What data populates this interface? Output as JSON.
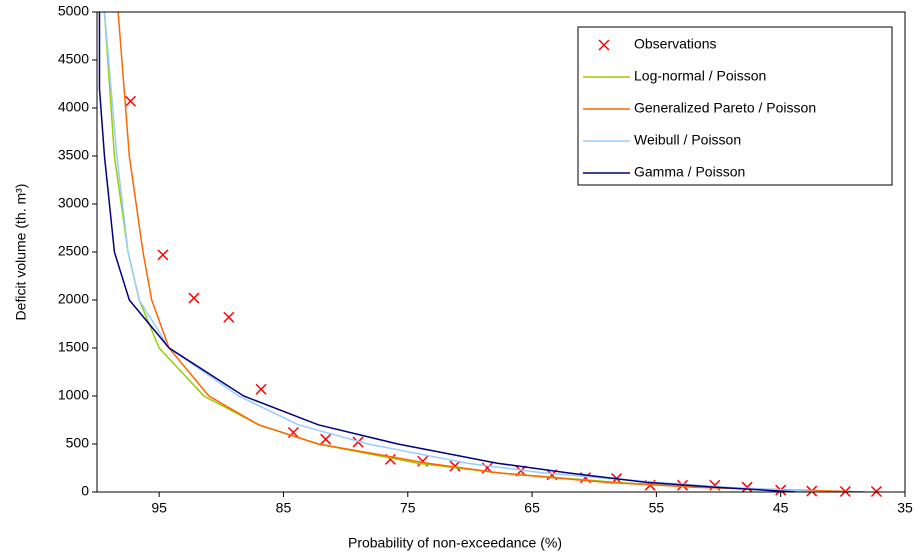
{
  "chart_data": {
    "type": "line",
    "xlabel": "Probability of non-exceedance (%)",
    "ylabel": "Deficit volume (th. m³)",
    "xlim": [
      100,
      35
    ],
    "xticks": [
      95,
      85,
      75,
      65,
      55,
      45,
      35
    ],
    "ylim": [
      0,
      5000
    ],
    "yticks": [
      0,
      500,
      1000,
      1500,
      2000,
      2500,
      3000,
      3500,
      4000,
      4500,
      5000
    ],
    "legend": "upper-right",
    "series": [
      {
        "name": "Observations",
        "color": "#ff0000",
        "marker": "x",
        "x": [
          97.3,
          94.7,
          92.2,
          89.4,
          86.8,
          84.2,
          81.6,
          79.0,
          76.4,
          73.8,
          71.2,
          68.6,
          65.9,
          63.4,
          60.7,
          58.2,
          55.5,
          52.9,
          50.3,
          47.7,
          45.0,
          42.5,
          39.8,
          37.3
        ],
        "values": [
          4070,
          2470,
          2020,
          1820,
          1070,
          620,
          550,
          520,
          340,
          320,
          270,
          250,
          220,
          180,
          150,
          140,
          70,
          70,
          70,
          50,
          20,
          10,
          5,
          5
        ]
      },
      {
        "name": "Log-normal / Poisson",
        "color": "#99cc00",
        "x": [
          99.4,
          98.6,
          97.5,
          96.6,
          95.0,
          91.4,
          87.0,
          82.2,
          74.2,
          67.8,
          58.2,
          51.8,
          39.8
        ],
        "values": [
          5000,
          3500,
          2500,
          2000,
          1500,
          1000,
          700,
          500,
          300,
          200,
          100,
          50,
          0
        ]
      },
      {
        "name": "Generalized Pareto / Poisson",
        "color": "#ff6600",
        "x": [
          98.3,
          97.4,
          96.3,
          95.6,
          94.2,
          91.0,
          87.0,
          82.2,
          73.4,
          67.8,
          59.0,
          51.8,
          38.2
        ],
        "values": [
          5000,
          3500,
          2500,
          2000,
          1500,
          1000,
          700,
          500,
          300,
          200,
          100,
          50,
          0
        ]
      },
      {
        "name": "Weibull / Poisson",
        "color": "#99ccff",
        "x": [
          99.4,
          98.4,
          97.5,
          96.6,
          94.2,
          88.6,
          83.8,
          78.2,
          70.2,
          64.2,
          55.0,
          49.4,
          41.4
        ],
        "values": [
          5000,
          3500,
          2500,
          2000,
          1500,
          1000,
          700,
          500,
          300,
          200,
          100,
          50,
          0
        ]
      },
      {
        "name": "Gamma / Poisson",
        "color": "#000080",
        "x": [
          99.8,
          99.8,
          99.4,
          98.6,
          97.4,
          94.2,
          88.2,
          82.2,
          75.8,
          67.8,
          62.2,
          55.8,
          50.2,
          43.8
        ],
        "values": [
          5000,
          4200,
          3500,
          2500,
          2000,
          1500,
          1000,
          700,
          500,
          300,
          200,
          100,
          50,
          0
        ]
      }
    ]
  }
}
